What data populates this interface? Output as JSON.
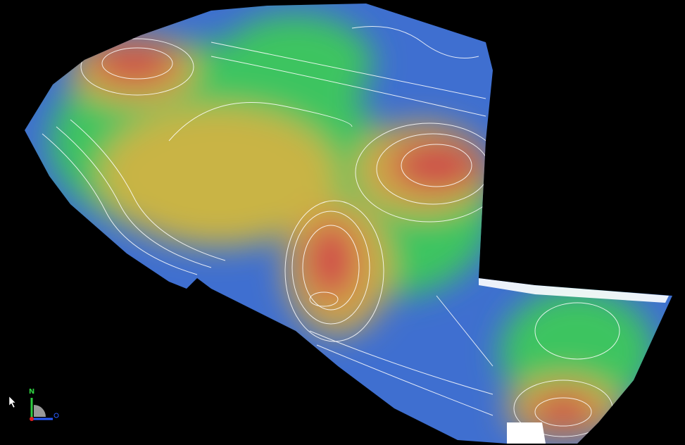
{
  "axis_indicator": {
    "north_label": "N"
  }
}
